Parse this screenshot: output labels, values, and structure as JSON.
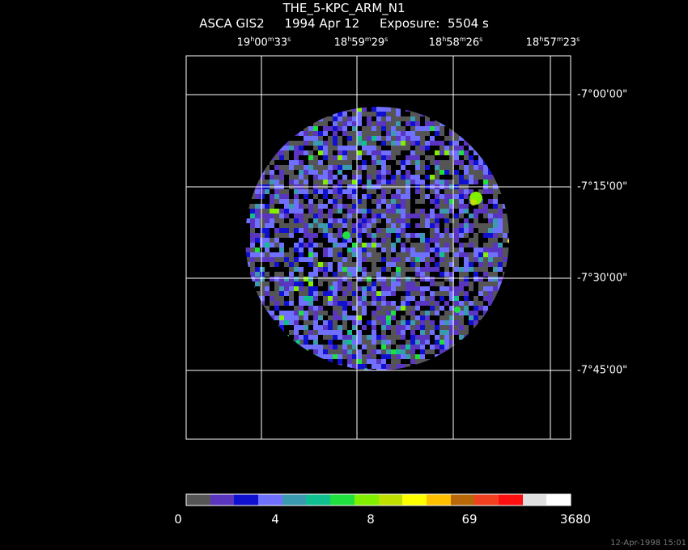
{
  "header": {
    "title": "THE_5-KPC_ARM_N1",
    "instrument": "ASCA GIS2",
    "date": "1994 Apr 12",
    "exposure_label": "Exposure:",
    "exposure_value": "5504 s"
  },
  "ra_ticks": [
    {
      "h": "19",
      "m": "00",
      "s": "33"
    },
    {
      "h": "18",
      "m": "59",
      "s": "29"
    },
    {
      "h": "18",
      "m": "58",
      "s": "26"
    },
    {
      "h": "18",
      "m": "57",
      "s": "23"
    }
  ],
  "dec_ticks": [
    "-7°00'00\"",
    "-7°15'00\"",
    "-7°30'00\"",
    "-7°45'00\""
  ],
  "colorbar": {
    "colors": [
      "#555555",
      "#5a35c0",
      "#1010d0",
      "#7070ff",
      "#3a9ab0",
      "#10c090",
      "#20e040",
      "#80f000",
      "#c0e000",
      "#ffff00",
      "#ffc000",
      "#b86808",
      "#f04020",
      "#ff1010",
      "#e0e0e0",
      "#ffffff"
    ],
    "labels": [
      "0",
      "4",
      "8",
      "69",
      "3680"
    ]
  },
  "timestamp": "12-Apr-1998 15:01"
}
